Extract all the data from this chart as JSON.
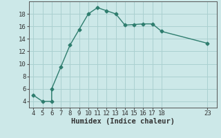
{
  "xlabel": "Humidex (Indice chaleur)",
  "background_color": "#cce8e8",
  "line_color": "#2e7d6e",
  "grid_color": "#aad0d0",
  "x_data": [
    4,
    5,
    6,
    6,
    7,
    8,
    9,
    10,
    11,
    12,
    13,
    14,
    15,
    16,
    17,
    18,
    23
  ],
  "y_data": [
    5,
    4,
    4,
    6,
    9.5,
    13,
    15.5,
    18,
    19,
    18.5,
    18,
    16.2,
    16.3,
    16.4,
    16.4,
    15.2,
    13.3
  ],
  "xlim": [
    3.5,
    24.0
  ],
  "ylim": [
    3.0,
    20.0
  ],
  "xticks": [
    4,
    5,
    6,
    7,
    8,
    9,
    10,
    11,
    12,
    13,
    14,
    15,
    16,
    17,
    18,
    23
  ],
  "yticks": [
    4,
    6,
    8,
    10,
    12,
    14,
    16,
    18
  ],
  "tick_fontsize": 6.5,
  "xlabel_fontsize": 7.5
}
